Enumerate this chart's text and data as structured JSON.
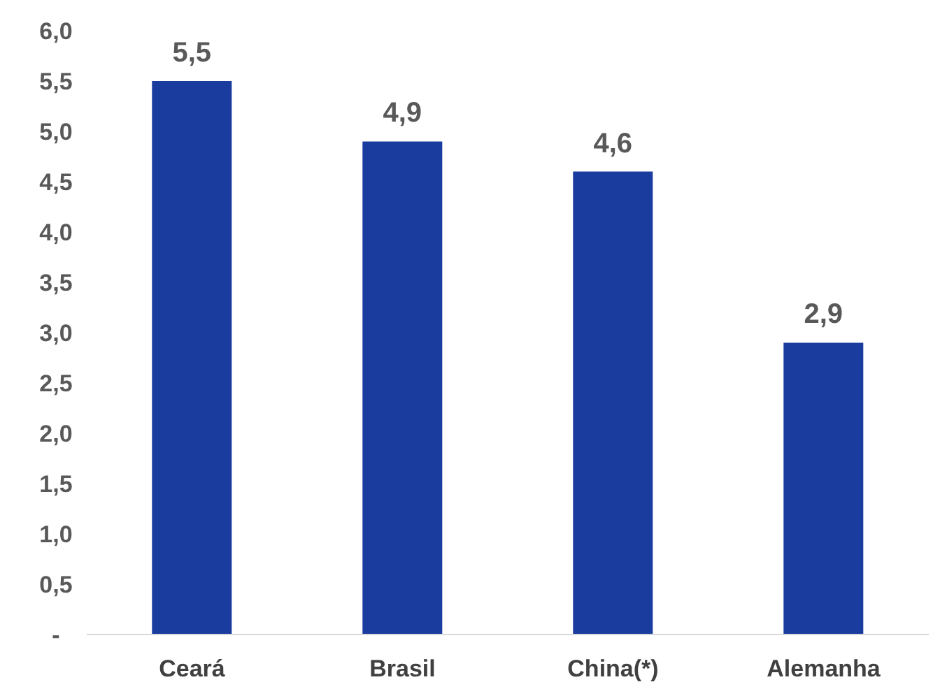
{
  "chart_data": {
    "type": "bar",
    "categories": [
      "Ceará",
      "Brasil",
      "China(*)",
      "Alemanha"
    ],
    "values": [
      5.5,
      4.9,
      4.6,
      2.9
    ],
    "color": "#1a3c9e",
    "value_labels": [
      "5,5",
      "4,9",
      "4,6",
      "2,9"
    ],
    "ylim": [
      0,
      6
    ],
    "yticks": [
      {
        "value": 0,
        "label": "-"
      },
      {
        "value": 0.5,
        "label": "0,5"
      },
      {
        "value": 1,
        "label": "1,0"
      },
      {
        "value": 1.5,
        "label": "1,5"
      },
      {
        "value": 2,
        "label": "2,0"
      },
      {
        "value": 2.5,
        "label": "2,5"
      },
      {
        "value": 3,
        "label": "3,0"
      },
      {
        "value": 3.5,
        "label": "3,5"
      },
      {
        "value": 4,
        "label": "4,0"
      },
      {
        "value": 4.5,
        "label": "4,5"
      },
      {
        "value": 5,
        "label": "5,0"
      },
      {
        "value": 5.5,
        "label": "5,5"
      },
      {
        "value": 6,
        "label": "6,0"
      }
    ],
    "grid": false,
    "legend": false
  }
}
